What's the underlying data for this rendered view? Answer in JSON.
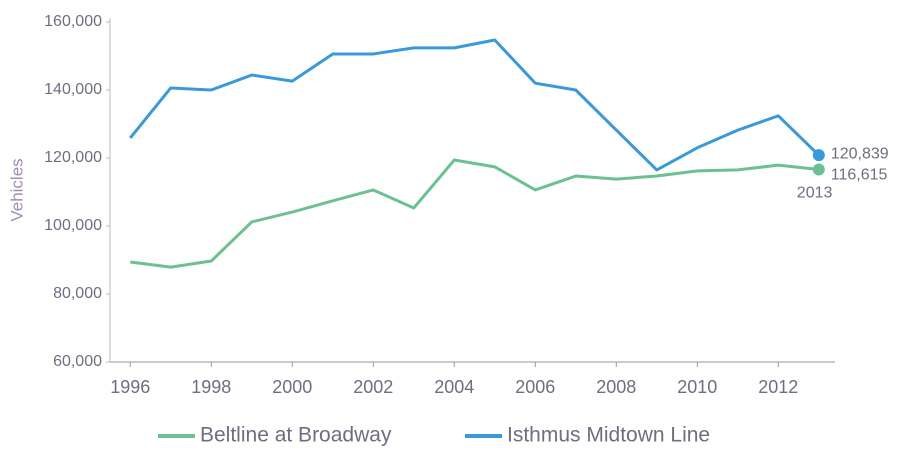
{
  "chart_data": {
    "type": "line",
    "y_label": "Vehicles",
    "x": [
      1996,
      1997,
      1998,
      1999,
      2000,
      2001,
      2002,
      2003,
      2004,
      2005,
      2006,
      2007,
      2008,
      2009,
      2010,
      2011,
      2012,
      2013
    ],
    "series": [
      {
        "name": "Beltline at Broadway",
        "color": "#6cc091",
        "values": [
          89400,
          87900,
          89700,
          101200,
          104100,
          107400,
          110600,
          105300,
          119400,
          117400,
          110600,
          114700,
          113800,
          114700,
          116200,
          116500,
          117900,
          116615
        ],
        "value_labels": [
          null,
          null,
          null,
          null,
          null,
          null,
          null,
          null,
          null,
          null,
          null,
          null,
          null,
          null,
          null,
          null,
          null,
          "116,615"
        ]
      },
      {
        "name": "Isthmus Midtown Line",
        "color": "#3a9ad9",
        "values": [
          125900,
          140600,
          140000,
          144400,
          142600,
          150600,
          150600,
          152400,
          152400,
          154700,
          142000,
          140000,
          128200,
          116500,
          123000,
          128200,
          132400,
          120839
        ],
        "value_labels": [
          null,
          null,
          null,
          null,
          null,
          null,
          null,
          null,
          null,
          null,
          null,
          null,
          null,
          null,
          null,
          null,
          null,
          "120,839"
        ]
      }
    ],
    "annotations": [
      "2013"
    ],
    "xlim": [
      1995.5,
      2013.4
    ],
    "xticks": [
      1996,
      1998,
      2000,
      2002,
      2004,
      2006,
      2008,
      2010,
      2012
    ],
    "ylim": [
      60000,
      160000
    ],
    "yticks": [
      {
        "value": 60000,
        "label": "60,000"
      },
      {
        "value": 80000,
        "label": "80,000"
      },
      {
        "value": 100000,
        "label": "100,000"
      },
      {
        "value": 120000,
        "label": "120,000"
      },
      {
        "value": 140000,
        "label": "140,000"
      },
      {
        "value": 160000,
        "label": "160,000"
      }
    ],
    "grid": false,
    "legend": "bottom"
  }
}
